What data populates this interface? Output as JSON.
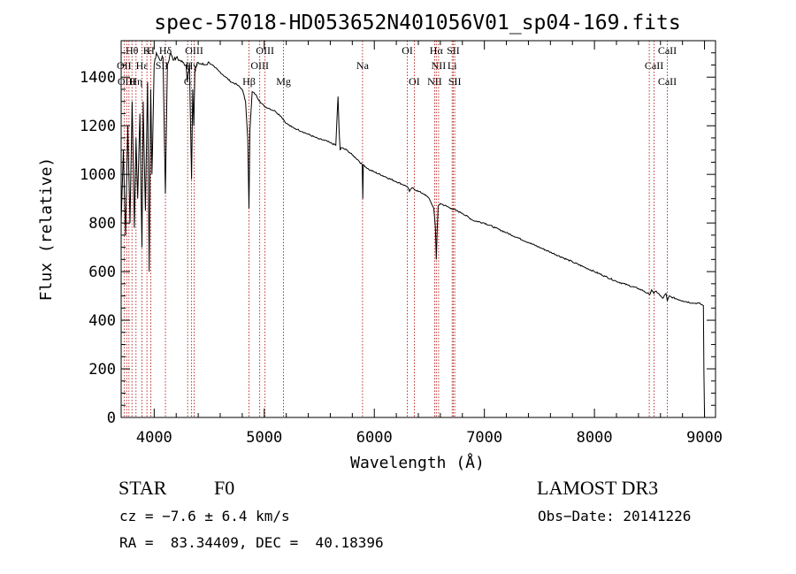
{
  "chart_data": {
    "type": "line",
    "title": "spec-57018-HD053652N401056V01_sp04-169.fits",
    "xlabel": "Wavelength (Å)",
    "ylabel": "Flux (relative)",
    "xlim": [
      3700,
      9100
    ],
    "ylim": [
      0,
      1550
    ],
    "xticks": [
      4000,
      5000,
      6000,
      7000,
      8000,
      9000
    ],
    "yticks": [
      0,
      200,
      400,
      600,
      800,
      1000,
      1200,
      1400
    ],
    "xtick_labels": [
      "4000",
      "5000",
      "6000",
      "7000",
      "8000",
      "9000"
    ],
    "ytick_labels": [
      "0",
      "200",
      "400",
      "600",
      "800",
      "1000",
      "1200",
      "1400"
    ],
    "grid": false,
    "series": [
      {
        "name": "spectrum",
        "x": [
          3700,
          3720,
          3740,
          3760,
          3780,
          3800,
          3820,
          3835,
          3850,
          3870,
          3889,
          3900,
          3920,
          3940,
          3955,
          3968,
          3980,
          4000,
          4020,
          4050,
          4080,
          4102,
          4120,
          4150,
          4180,
          4200,
          4230,
          4260,
          4290,
          4300,
          4320,
          4340,
          4350,
          4360,
          4370,
          4400,
          4450,
          4500,
          4550,
          4600,
          4650,
          4700,
          4750,
          4800,
          4830,
          4850,
          4861,
          4870,
          4890,
          4920,
          4960,
          5000,
          5050,
          5100,
          5150,
          5200,
          5250,
          5300,
          5350,
          5400,
          5450,
          5500,
          5550,
          5600,
          5650,
          5670,
          5680,
          5690,
          5700,
          5750,
          5800,
          5850,
          5890,
          5895,
          5900,
          5950,
          6000,
          6100,
          6200,
          6300,
          6320,
          6340,
          6400,
          6450,
          6500,
          6540,
          6555,
          6563,
          6570,
          6580,
          6600,
          6700,
          6800,
          6900,
          7000,
          7100,
          7200,
          7300,
          7400,
          7500,
          7600,
          7700,
          7800,
          7900,
          8000,
          8100,
          8200,
          8300,
          8400,
          8450,
          8500,
          8520,
          8540,
          8560,
          8600,
          8620,
          8650,
          8662,
          8680,
          8700,
          8800,
          8900,
          8950,
          8990,
          8995,
          9000
        ],
        "values": [
          800,
          1100,
          750,
          1200,
          800,
          1300,
          780,
          1150,
          900,
          1250,
          700,
          1300,
          850,
          1380,
          600,
          1350,
          1000,
          1450,
          1500,
          1470,
          1480,
          920,
          1450,
          1500,
          1470,
          1480,
          1470,
          1460,
          1450,
          1380,
          1460,
          980,
          1350,
          1200,
          1430,
          1460,
          1450,
          1460,
          1440,
          1420,
          1400,
          1380,
          1370,
          1350,
          1300,
          1150,
          860,
          1180,
          1340,
          1330,
          1300,
          1280,
          1270,
          1260,
          1240,
          1210,
          1195,
          1185,
          1175,
          1165,
          1155,
          1145,
          1140,
          1130,
          1120,
          1320,
          1180,
          1100,
          1110,
          1100,
          1080,
          1060,
          1040,
          900,
          1040,
          1020,
          1010,
          990,
          970,
          950,
          930,
          945,
          930,
          920,
          900,
          860,
          780,
          650,
          760,
          870,
          880,
          860,
          840,
          810,
          800,
          780,
          760,
          740,
          720,
          700,
          680,
          660,
          640,
          620,
          600,
          580,
          560,
          545,
          530,
          520,
          505,
          525,
          510,
          520,
          500,
          490,
          510,
          480,
          500,
          495,
          480,
          470,
          470,
          460,
          180,
          0
        ],
        "color": "#000000"
      }
    ],
    "line_markers": {
      "color": "#b00000",
      "wavelengths": [
        3727,
        3750,
        3771,
        3798,
        3835,
        3889,
        3934,
        3969,
        4102,
        4304,
        4340,
        4363,
        4861,
        4959,
        5007,
        5175,
        5893,
        6300,
        6363,
        6548,
        6563,
        6584,
        6707,
        6717,
        6731,
        8498,
        8542,
        8662
      ]
    },
    "annotations": [
      {
        "text": "Hθ",
        "x": 3798,
        "row": 1
      },
      {
        "text": "K",
        "x": 3934,
        "row": 1
      },
      {
        "text": "H",
        "x": 3969,
        "row": 1
      },
      {
        "text": "Hδ",
        "x": 4102,
        "row": 1
      },
      {
        "text": "OIII",
        "x": 4363,
        "row": 1
      },
      {
        "text": "OIII",
        "x": 5007,
        "row": 1
      },
      {
        "text": "OI",
        "x": 6300,
        "row": 1
      },
      {
        "text": "Hα",
        "x": 6563,
        "row": 1
      },
      {
        "text": "SII",
        "x": 6717,
        "row": 1
      },
      {
        "text": "CaII",
        "x": 8662,
        "row": 1
      },
      {
        "text": "OII",
        "x": 3727,
        "row": 2
      },
      {
        "text": "Hε",
        "x": 3889,
        "row": 2
      },
      {
        "text": "SII",
        "x": 4070,
        "row": 2
      },
      {
        "text": "Hγ",
        "x": 4340,
        "row": 2
      },
      {
        "text": "OIII",
        "x": 4959,
        "row": 2
      },
      {
        "text": "Na",
        "x": 5893,
        "row": 2
      },
      {
        "text": "NII",
        "x": 6584,
        "row": 2
      },
      {
        "text": "Li",
        "x": 6707,
        "row": 2
      },
      {
        "text": "CaII",
        "x": 8542,
        "row": 2
      },
      {
        "text": "OIII",
        "x": 3750,
        "row": 3
      },
      {
        "text": "Hη",
        "x": 3835,
        "row": 3
      },
      {
        "text": "G",
        "x": 4304,
        "row": 3
      },
      {
        "text": "Hβ",
        "x": 4861,
        "row": 3
      },
      {
        "text": "Mg",
        "x": 5175,
        "row": 3
      },
      {
        "text": "OI",
        "x": 6363,
        "row": 3
      },
      {
        "text": "NII",
        "x": 6548,
        "row": 3
      },
      {
        "text": "SII",
        "x": 6731,
        "row": 3
      },
      {
        "text": "CaII",
        "x": 8662,
        "row": 3
      }
    ]
  },
  "info": {
    "object_class": "STAR",
    "subclass": "F0",
    "survey": "LAMOST DR3",
    "cz": "cz = −7.6 ± 6.4 km/s",
    "obs_date": "Obs−Date: 20141226",
    "radec": "RA =  83.34409, DEC =  40.18396"
  }
}
